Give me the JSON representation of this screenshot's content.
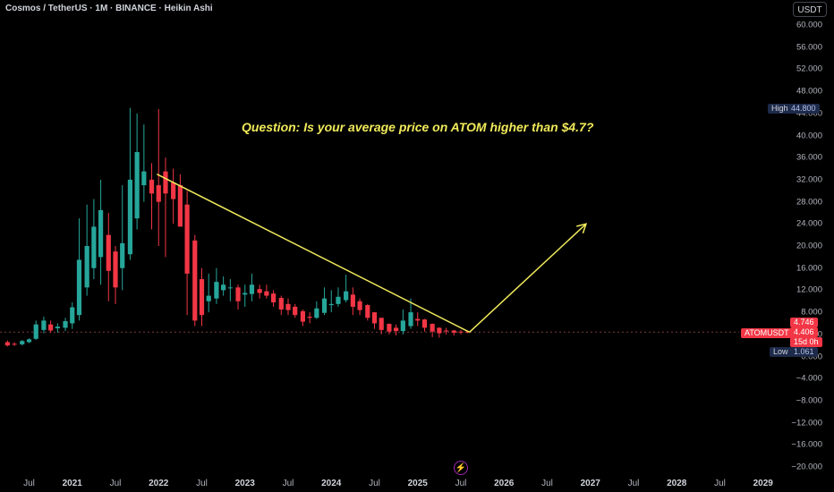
{
  "header": {
    "title": "Cosmos / TetherUS · 1M · BINANCE · Heikin Ashi",
    "currency": "USDT"
  },
  "annotation": {
    "question": "Question: Is your average price on ATOM higher than $4.7?"
  },
  "price_axis": {
    "ticks": [
      "60.000",
      "56.000",
      "52.000",
      "48.000",
      "44.000",
      "40.000",
      "36.000",
      "32.000",
      "28.000",
      "24.000",
      "20.000",
      "16.000",
      "12.000",
      "8.000",
      "4.000",
      "0.000",
      "−4.000",
      "−8.000",
      "−12.000",
      "−16.000",
      "−20.000"
    ],
    "tick_values": [
      60,
      56,
      52,
      48,
      44,
      40,
      36,
      32,
      28,
      24,
      20,
      16,
      12,
      8,
      4,
      0,
      -4,
      -8,
      -12,
      -16,
      -20
    ],
    "high": {
      "label": "High",
      "value": "44.800"
    },
    "low": {
      "label": "Low",
      "value": "1.061"
    },
    "symbol": {
      "label": "ATOMUSDT",
      "price": "4.406",
      "countdown": "15d 0h",
      "prev": "4.746"
    }
  },
  "time_axis": {
    "labels": [
      {
        "text": "Jul",
        "year": false,
        "t": 2020.5
      },
      {
        "text": "2021",
        "year": true,
        "t": 2021.0
      },
      {
        "text": "Jul",
        "year": false,
        "t": 2021.5
      },
      {
        "text": "2022",
        "year": true,
        "t": 2022.0
      },
      {
        "text": "Jul",
        "year": false,
        "t": 2022.5
      },
      {
        "text": "2023",
        "year": true,
        "t": 2023.0
      },
      {
        "text": "Jul",
        "year": false,
        "t": 2023.5
      },
      {
        "text": "2024",
        "year": true,
        "t": 2024.0
      },
      {
        "text": "Jul",
        "year": false,
        "t": 2024.5
      },
      {
        "text": "2025",
        "year": true,
        "t": 2025.0
      },
      {
        "text": "Jul",
        "year": false,
        "t": 2025.5
      },
      {
        "text": "2026",
        "year": true,
        "t": 2026.0
      },
      {
        "text": "Jul",
        "year": false,
        "t": 2026.5
      },
      {
        "text": "2027",
        "year": true,
        "t": 2027.0
      },
      {
        "text": "Jul",
        "year": false,
        "t": 2027.5
      },
      {
        "text": "2028",
        "year": true,
        "t": 2028.0
      },
      {
        "text": "Jul",
        "year": false,
        "t": 2028.5
      },
      {
        "text": "2029",
        "year": true,
        "t": 2029.0
      }
    ]
  },
  "colors": {
    "up": "#26a69a",
    "down": "#f23645",
    "drawing": "#f0ea5b",
    "background": "#000000"
  },
  "chart_data": {
    "type": "candlestick",
    "style": "Heikin Ashi",
    "interval": "1M",
    "ylim": [
      -21.5,
      62
    ],
    "grid": false,
    "candles": [
      {
        "t": 2020.25,
        "o": 2.6,
        "h": 2.9,
        "l": 1.8,
        "c": 2.0
      },
      {
        "t": 2020.33,
        "o": 2.3,
        "h": 2.6,
        "l": 1.9,
        "c": 2.2
      },
      {
        "t": 2020.42,
        "o": 2.2,
        "h": 3.0,
        "l": 2.0,
        "c": 2.8
      },
      {
        "t": 2020.5,
        "o": 2.6,
        "h": 3.3,
        "l": 2.4,
        "c": 3.1
      },
      {
        "t": 2020.58,
        "o": 3.2,
        "h": 6.5,
        "l": 3.0,
        "c": 5.8
      },
      {
        "t": 2020.67,
        "o": 4.8,
        "h": 7.2,
        "l": 4.2,
        "c": 6.5
      },
      {
        "t": 2020.75,
        "o": 5.8,
        "h": 6.5,
        "l": 4.3,
        "c": 4.7
      },
      {
        "t": 2020.83,
        "o": 5.1,
        "h": 6.0,
        "l": 4.3,
        "c": 5.4
      },
      {
        "t": 2020.92,
        "o": 5.2,
        "h": 7.0,
        "l": 4.6,
        "c": 6.4
      },
      {
        "t": 2021.0,
        "o": 6.0,
        "h": 9.8,
        "l": 5.0,
        "c": 8.9
      },
      {
        "t": 2021.08,
        "o": 7.5,
        "h": 25.0,
        "l": 6.5,
        "c": 17.5
      },
      {
        "t": 2021.17,
        "o": 12.5,
        "h": 27.5,
        "l": 11.0,
        "c": 20.0
      },
      {
        "t": 2021.25,
        "o": 16.0,
        "h": 28.5,
        "l": 14.0,
        "c": 23.5
      },
      {
        "t": 2021.33,
        "o": 18.0,
        "h": 32.0,
        "l": 13.0,
        "c": 26.5
      },
      {
        "t": 2021.42,
        "o": 22.0,
        "h": 26.0,
        "l": 10.0,
        "c": 15.5
      },
      {
        "t": 2021.5,
        "o": 19.0,
        "h": 20.0,
        "l": 9.5,
        "c": 12.5
      },
      {
        "t": 2021.58,
        "o": 16.0,
        "h": 31.0,
        "l": 12.0,
        "c": 20.5
      },
      {
        "t": 2021.67,
        "o": 18.5,
        "h": 45.0,
        "l": 17.5,
        "c": 32.0
      },
      {
        "t": 2021.75,
        "o": 25.0,
        "h": 44.0,
        "l": 23.0,
        "c": 37.0
      },
      {
        "t": 2021.83,
        "o": 31.0,
        "h": 42.0,
        "l": 28.0,
        "c": 33.5
      },
      {
        "t": 2021.92,
        "o": 32.0,
        "h": 35.0,
        "l": 23.0,
        "c": 29.5
      },
      {
        "t": 2022.0,
        "o": 31.0,
        "h": 44.8,
        "l": 20.0,
        "c": 28.0
      },
      {
        "t": 2022.08,
        "o": 33.5,
        "h": 36.0,
        "l": 18.0,
        "c": 29.5
      },
      {
        "t": 2022.17,
        "o": 31.5,
        "h": 34.0,
        "l": 24.0,
        "c": 28.5
      },
      {
        "t": 2022.25,
        "o": 31.0,
        "h": 33.0,
        "l": 24.0,
        "c": 23.5
      },
      {
        "t": 2022.33,
        "o": 27.5,
        "h": 30.0,
        "l": 7.5,
        "c": 15.0
      },
      {
        "t": 2022.42,
        "o": 21.0,
        "h": 22.0,
        "l": 5.5,
        "c": 6.5
      },
      {
        "t": 2022.5,
        "o": 14.0,
        "h": 16.0,
        "l": 5.5,
        "c": 7.5
      },
      {
        "t": 2022.58,
        "o": 10.0,
        "h": 15.0,
        "l": 8.0,
        "c": 11.0
      },
      {
        "t": 2022.67,
        "o": 10.5,
        "h": 16.0,
        "l": 9.5,
        "c": 13.5
      },
      {
        "t": 2022.75,
        "o": 12.0,
        "h": 14.5,
        "l": 11.0,
        "c": 13.0
      },
      {
        "t": 2022.83,
        "o": 12.5,
        "h": 14.0,
        "l": 10.0,
        "c": 12.5
      },
      {
        "t": 2022.92,
        "o": 12.5,
        "h": 13.0,
        "l": 8.5,
        "c": 10.0
      },
      {
        "t": 2023.0,
        "o": 11.2,
        "h": 13.0,
        "l": 9.0,
        "c": 11.5
      },
      {
        "t": 2023.08,
        "o": 11.3,
        "h": 15.0,
        "l": 10.0,
        "c": 13.0
      },
      {
        "t": 2023.17,
        "o": 12.2,
        "h": 13.0,
        "l": 10.5,
        "c": 11.5
      },
      {
        "t": 2023.25,
        "o": 11.8,
        "h": 13.0,
        "l": 10.5,
        "c": 11.0
      },
      {
        "t": 2023.33,
        "o": 11.4,
        "h": 12.0,
        "l": 9.0,
        "c": 9.8
      },
      {
        "t": 2023.42,
        "o": 10.6,
        "h": 11.0,
        "l": 7.5,
        "c": 8.5
      },
      {
        "t": 2023.5,
        "o": 9.5,
        "h": 10.5,
        "l": 7.5,
        "c": 8.4
      },
      {
        "t": 2023.58,
        "o": 9.0,
        "h": 9.5,
        "l": 7.0,
        "c": 7.5
      },
      {
        "t": 2023.67,
        "o": 8.2,
        "h": 8.5,
        "l": 5.5,
        "c": 6.3
      },
      {
        "t": 2023.75,
        "o": 7.2,
        "h": 8.0,
        "l": 6.0,
        "c": 7.0
      },
      {
        "t": 2023.83,
        "o": 7.0,
        "h": 10.0,
        "l": 6.8,
        "c": 8.7
      },
      {
        "t": 2023.92,
        "o": 7.9,
        "h": 12.5,
        "l": 7.5,
        "c": 10.5
      },
      {
        "t": 2024.0,
        "o": 9.3,
        "h": 12.0,
        "l": 8.0,
        "c": 9.5
      },
      {
        "t": 2024.08,
        "o": 9.5,
        "h": 12.5,
        "l": 9.0,
        "c": 10.8
      },
      {
        "t": 2024.17,
        "o": 10.2,
        "h": 14.8,
        "l": 9.8,
        "c": 11.8
      },
      {
        "t": 2024.25,
        "o": 11.2,
        "h": 12.5,
        "l": 7.5,
        "c": 9.0
      },
      {
        "t": 2024.33,
        "o": 10.0,
        "h": 10.5,
        "l": 7.5,
        "c": 8.4
      },
      {
        "t": 2024.42,
        "o": 9.3,
        "h": 9.5,
        "l": 6.5,
        "c": 7.0
      },
      {
        "t": 2024.5,
        "o": 8.0,
        "h": 8.0,
        "l": 5.0,
        "c": 6.0
      },
      {
        "t": 2024.58,
        "o": 7.0,
        "h": 7.0,
        "l": 4.0,
        "c": 4.8
      },
      {
        "t": 2024.67,
        "o": 5.9,
        "h": 6.0,
        "l": 4.0,
        "c": 4.5
      },
      {
        "t": 2024.75,
        "o": 5.2,
        "h": 5.8,
        "l": 3.8,
        "c": 4.6
      },
      {
        "t": 2024.83,
        "o": 4.6,
        "h": 8.5,
        "l": 4.0,
        "c": 6.5
      },
      {
        "t": 2024.92,
        "o": 5.5,
        "h": 10.5,
        "l": 5.0,
        "c": 8.0
      },
      {
        "t": 2025.0,
        "o": 6.8,
        "h": 8.0,
        "l": 5.5,
        "c": 6.5
      },
      {
        "t": 2025.08,
        "o": 6.7,
        "h": 6.8,
        "l": 4.5,
        "c": 5.2
      },
      {
        "t": 2025.17,
        "o": 5.9,
        "h": 6.0,
        "l": 3.5,
        "c": 4.5
      },
      {
        "t": 2025.25,
        "o": 5.2,
        "h": 5.3,
        "l": 3.4,
        "c": 4.2
      },
      {
        "t": 2025.33,
        "o": 4.7,
        "h": 5.2,
        "l": 4.0,
        "c": 4.6
      },
      {
        "t": 2025.42,
        "o": 4.7,
        "h": 4.8,
        "l": 3.8,
        "c": 4.3
      },
      {
        "t": 2025.5,
        "o": 4.5,
        "h": 4.8,
        "l": 4.0,
        "c": 4.4
      },
      {
        "t": 2025.58,
        "o": 4.5,
        "h": 4.7,
        "l": 4.2,
        "c": 4.4
      }
    ],
    "drawings": [
      {
        "type": "trendline",
        "from": {
          "t": 2021.98,
          "v": 33.0
        },
        "to": {
          "t": 2025.6,
          "v": 4.4
        }
      },
      {
        "type": "arrow",
        "from": {
          "t": 2025.6,
          "v": 4.4
        },
        "to": {
          "t": 2026.95,
          "v": 24.0
        }
      }
    ],
    "last_price": 4.406
  }
}
